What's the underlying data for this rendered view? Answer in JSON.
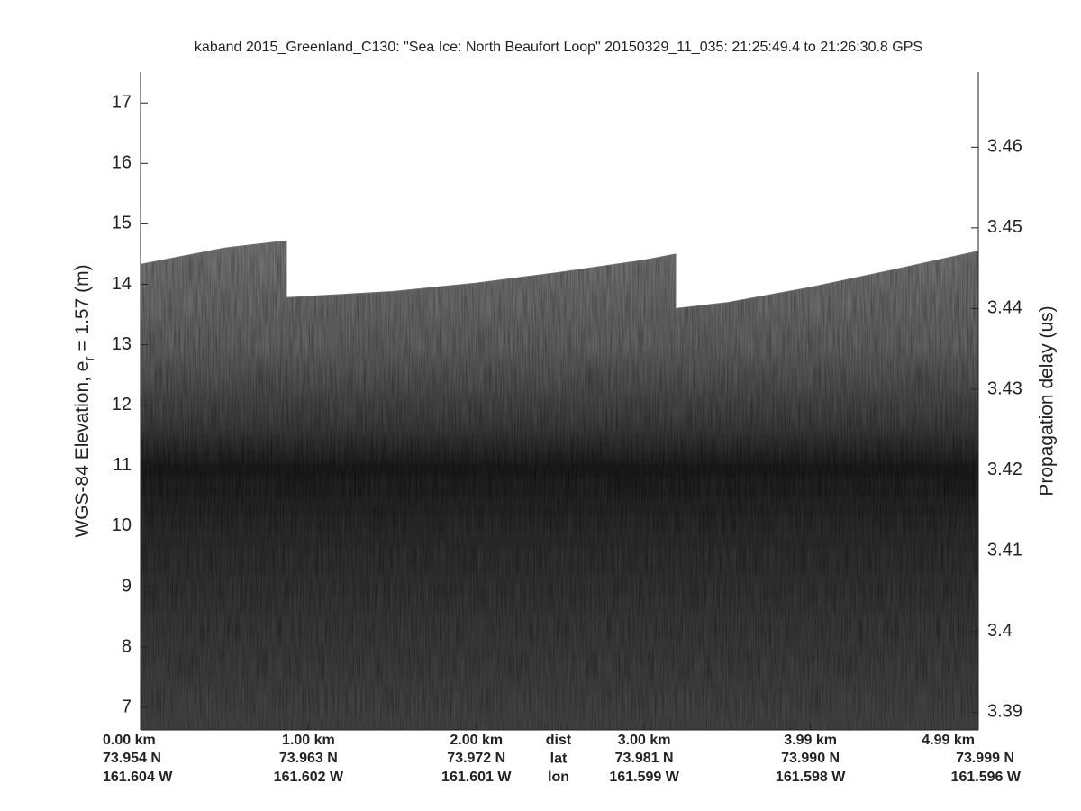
{
  "chart_data": {
    "type": "area",
    "title": "kaband 2015_Greenland_C130: \"Sea Ice: North Beaufort Loop\"  20150329_11_035: 21:25:49.4 to 21:26:30.8 GPS",
    "ylabel": "WGS-84 Elevation, e",
    "ylabel_sub": "r",
    "ylabel_rest": " = 1.57 (m)",
    "y2label": "Propagation delay (us)",
    "x": [
      0,
      0.5,
      0.869,
      0.869,
      1.5,
      2.0,
      2.5,
      3.0,
      3.187,
      3.187,
      3.5,
      3.99,
      4.5,
      4.99
    ],
    "values": [
      14.33,
      14.6,
      14.72,
      13.78,
      13.88,
      14.02,
      14.2,
      14.4,
      14.5,
      13.6,
      13.7,
      13.95,
      14.25,
      14.55
    ],
    "color": "#6e6e6e",
    "xlim": [
      0,
      4.99
    ],
    "xticks": [
      {
        "value": 0,
        "label": "0.00 km"
      },
      {
        "value": 1,
        "label": "1.00 km"
      },
      {
        "value": 2,
        "label": "2.00 km"
      },
      {
        "value": 3,
        "label": "3.00 km"
      },
      {
        "value": 3.99,
        "label": "3.99 km"
      },
      {
        "value": 4.99,
        "label": "4.99 km"
      }
    ],
    "lat_labels": [
      "73.954 N",
      "73.963 N",
      "73.972 N",
      "73.981 N",
      "73.990 N",
      "73.999 N"
    ],
    "lon_labels": [
      "161.604 W",
      "161.602 W",
      "161.601 W",
      "161.599 W",
      "161.598 W",
      "161.596 W"
    ],
    "row_names": [
      "dist",
      "lat",
      "lon"
    ],
    "ylim": [
      6.63,
      17.51
    ],
    "yticks": [
      7,
      8,
      9,
      10,
      11,
      12,
      13,
      14,
      15,
      16,
      17
    ],
    "y2lim": [
      3.3878,
      3.4693
    ],
    "y2ticks": [
      3.39,
      3.4,
      3.41,
      3.42,
      3.43,
      3.44,
      3.45,
      3.46
    ]
  }
}
